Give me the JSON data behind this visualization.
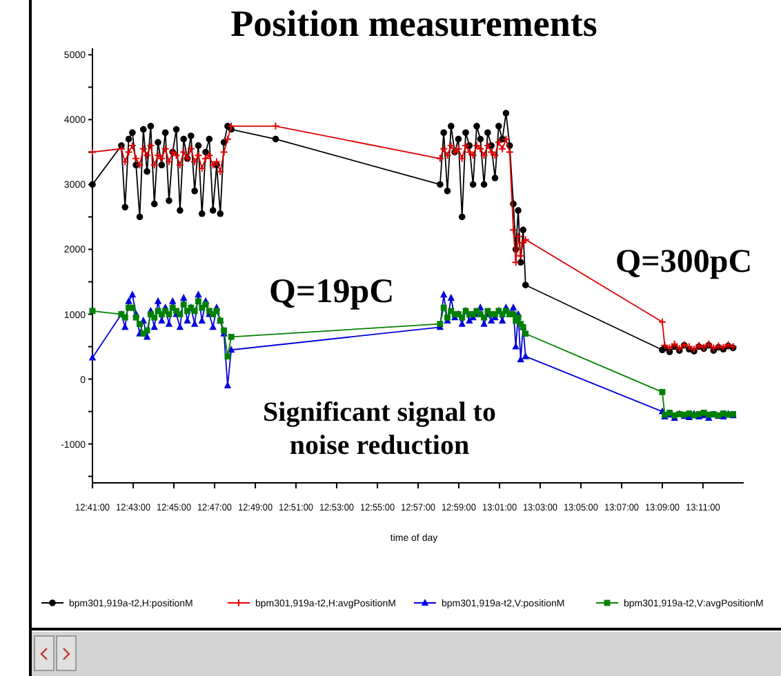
{
  "chart_data": {
    "type": "line",
    "title": "Position measurements",
    "xlabel": "time of day",
    "annotations": [
      "Q=19pC",
      "Q=300pC",
      "Significant signal to noise reduction"
    ],
    "xlim": [
      12.6833,
      13.2167
    ],
    "xticks": [
      {
        "value": 12.6833,
        "label": "12:41:00"
      },
      {
        "value": 12.7167,
        "label": "12:43:00"
      },
      {
        "value": 12.75,
        "label": "12:45:00"
      },
      {
        "value": 12.7833,
        "label": "12:47:00"
      },
      {
        "value": 12.8167,
        "label": "12:49:00"
      },
      {
        "value": 12.85,
        "label": "12:51:00"
      },
      {
        "value": 12.8833,
        "label": "12:53:00"
      },
      {
        "value": 12.9167,
        "label": "12:55:00"
      },
      {
        "value": 12.95,
        "label": "12:57:00"
      },
      {
        "value": 12.9833,
        "label": "12:59:00"
      },
      {
        "value": 13.0167,
        "label": "13:01:00"
      },
      {
        "value": 13.05,
        "label": "13:03:00"
      },
      {
        "value": 13.0833,
        "label": "13:05:00"
      },
      {
        "value": 13.1167,
        "label": "13:07:00"
      },
      {
        "value": 13.15,
        "label": "13:09:00"
      },
      {
        "value": 13.1833,
        "label": "13:11:00"
      }
    ],
    "ylim": [
      -1600,
      5100
    ],
    "yticks": [
      {
        "value": -1500,
        "label": null
      },
      -1000,
      {
        "value": -500,
        "label": null
      },
      0,
      {
        "value": 500,
        "label": null
      },
      1000,
      {
        "value": 1500,
        "label": null
      },
      2000,
      {
        "value": 2500,
        "label": null
      },
      3000,
      {
        "value": 3500,
        "label": null
      },
      4000,
      {
        "value": 4500,
        "label": null
      },
      5000
    ],
    "legend": "bottom",
    "x": [
      12.6833,
      12.707,
      12.71,
      12.713,
      12.716,
      12.719,
      12.722,
      12.725,
      12.728,
      12.731,
      12.734,
      12.737,
      12.74,
      12.743,
      12.746,
      12.749,
      12.752,
      12.755,
      12.758,
      12.761,
      12.764,
      12.767,
      12.77,
      12.773,
      12.776,
      12.779,
      12.782,
      12.785,
      12.788,
      12.791,
      12.794,
      12.797,
      12.8333,
      12.968,
      12.971,
      12.974,
      12.977,
      12.98,
      12.983,
      12.986,
      12.989,
      12.992,
      12.995,
      12.998,
      13.001,
      13.004,
      13.007,
      13.01,
      13.013,
      13.016,
      13.019,
      13.022,
      13.025,
      13.028,
      13.03,
      13.032,
      13.034,
      13.036,
      13.038,
      13.15,
      13.152,
      13.156,
      13.16,
      13.164,
      13.168,
      13.172,
      13.176,
      13.18,
      13.184,
      13.188,
      13.192,
      13.196,
      13.2,
      13.204,
      13.208
    ],
    "series": [
      {
        "name": "bpm301,919a-t2,H:positionM",
        "color": "#000000",
        "marker": "circle",
        "values": [
          3000,
          3600,
          2650,
          3700,
          3800,
          3300,
          2500,
          3850,
          3200,
          3900,
          2700,
          3650,
          3300,
          3800,
          2750,
          3500,
          3850,
          2600,
          3700,
          3400,
          3750,
          2900,
          3600,
          2550,
          3500,
          3700,
          2600,
          3300,
          2550,
          3650,
          3900,
          3850,
          3700,
          3000,
          3800,
          2900,
          3900,
          3500,
          3700,
          2500,
          3800,
          3600,
          3000,
          3900,
          3700,
          3000,
          3800,
          3600,
          3100,
          3900,
          3700,
          4100,
          3600,
          2700,
          2000,
          2600,
          1800,
          2300,
          1450,
          450,
          480,
          420,
          500,
          440,
          520,
          460,
          430,
          500,
          470,
          520,
          440,
          490,
          460,
          510,
          480
        ]
      },
      {
        "name": "bpm301,919a-t2,H:avgPositionM",
        "color": "#e00000",
        "marker": "cross",
        "values": [
          3500,
          3550,
          3350,
          3500,
          3600,
          3400,
          3300,
          3550,
          3450,
          3600,
          3300,
          3450,
          3400,
          3550,
          3350,
          3500,
          3450,
          3300,
          3500,
          3400,
          3550,
          3350,
          3450,
          3250,
          3400,
          3450,
          3300,
          3350,
          3200,
          3500,
          3700,
          3900,
          3900,
          3400,
          3550,
          3450,
          3600,
          3500,
          3550,
          3400,
          3600,
          3500,
          3450,
          3600,
          3550,
          3450,
          3600,
          3500,
          3450,
          3650,
          3550,
          3700,
          3500,
          2300,
          1800,
          2200,
          1900,
          2100,
          2150,
          880,
          520,
          480,
          540,
          470,
          530,
          500,
          460,
          520,
          490,
          540,
          480,
          510,
          490,
          530,
          500
        ]
      },
      {
        "name": "bpm301,919a-t2,V:positionM",
        "color": "#0000dd",
        "marker": "triangle",
        "x": [
          12.6833,
          12.707,
          12.71,
          12.713,
          12.716,
          12.719,
          12.722,
          12.725,
          12.728,
          12.731,
          12.734,
          12.737,
          12.74,
          12.743,
          12.746,
          12.749,
          12.752,
          12.755,
          12.758,
          12.761,
          12.764,
          12.767,
          12.77,
          12.773,
          12.776,
          12.779,
          12.782,
          12.785,
          12.788,
          12.791,
          12.794,
          12.797,
          12.968,
          12.971,
          12.974,
          12.977,
          12.98,
          12.983,
          12.986,
          12.989,
          12.992,
          12.995,
          12.998,
          13.001,
          13.004,
          13.007,
          13.01,
          13.013,
          13.016,
          13.019,
          13.022,
          13.025,
          13.028,
          13.03,
          13.032,
          13.034,
          13.036,
          13.038,
          13.15,
          13.152,
          13.156,
          13.16,
          13.164,
          13.168,
          13.172,
          13.176,
          13.18,
          13.184,
          13.188,
          13.192,
          13.196,
          13.2,
          13.204,
          13.208
        ],
        "values": [
          330,
          1000,
          800,
          1200,
          1300,
          1000,
          700,
          900,
          650,
          1050,
          800,
          1200,
          900,
          1100,
          850,
          1200,
          1000,
          800,
          1250,
          900,
          1100,
          850,
          1300,
          900,
          1200,
          1000,
          800,
          1100,
          900,
          700,
          -100,
          450,
          800,
          1300,
          900,
          1250,
          950,
          1000,
          850,
          1050,
          900,
          950,
          1000,
          1100,
          850,
          1000,
          900,
          950,
          1050,
          900,
          1100,
          1000,
          1100,
          500,
          1000,
          300,
          800,
          350,
          -500,
          -580,
          -550,
          -600,
          -540,
          -570,
          -590,
          -540,
          -580,
          -560,
          -600,
          -550,
          -570,
          -580,
          -540,
          -560
        ]
      },
      {
        "name": "bpm301,919a-t2,V:avgPositionM",
        "color": "#008000",
        "marker": "square",
        "x": [
          12.6833,
          12.707,
          12.71,
          12.713,
          12.716,
          12.719,
          12.722,
          12.725,
          12.728,
          12.731,
          12.734,
          12.737,
          12.74,
          12.743,
          12.746,
          12.749,
          12.752,
          12.755,
          12.758,
          12.761,
          12.764,
          12.767,
          12.77,
          12.773,
          12.776,
          12.779,
          12.782,
          12.785,
          12.788,
          12.791,
          12.794,
          12.797,
          12.968,
          12.971,
          12.974,
          12.977,
          12.98,
          12.983,
          12.986,
          12.989,
          12.992,
          12.995,
          12.998,
          13.001,
          13.004,
          13.007,
          13.01,
          13.013,
          13.016,
          13.019,
          13.022,
          13.025,
          13.028,
          13.03,
          13.032,
          13.034,
          13.036,
          13.038,
          13.15,
          13.152,
          13.156,
          13.16,
          13.164,
          13.168,
          13.172,
          13.176,
          13.18,
          13.184,
          13.188,
          13.192,
          13.196,
          13.2,
          13.204,
          13.208
        ],
        "values": [
          1050,
          1000,
          950,
          1100,
          1100,
          950,
          850,
          700,
          750,
          1000,
          950,
          1050,
          1000,
          1050,
          1000,
          1100,
          1050,
          1000,
          1150,
          1050,
          1100,
          1050,
          1200,
          1100,
          1150,
          1050,
          1000,
          1050,
          900,
          750,
          350,
          650,
          850,
          1100,
          950,
          1050,
          1000,
          1000,
          950,
          1050,
          1000,
          1000,
          1050,
          1000,
          950,
          1050,
          1000,
          1000,
          1050,
          1000,
          1050,
          1000,
          1000,
          900,
          950,
          850,
          800,
          700,
          -200,
          -550,
          -520,
          -560,
          -540,
          -550,
          -530,
          -560,
          -540,
          -520,
          -550,
          -540,
          -560,
          -530,
          -550,
          -540
        ]
      }
    ]
  }
}
